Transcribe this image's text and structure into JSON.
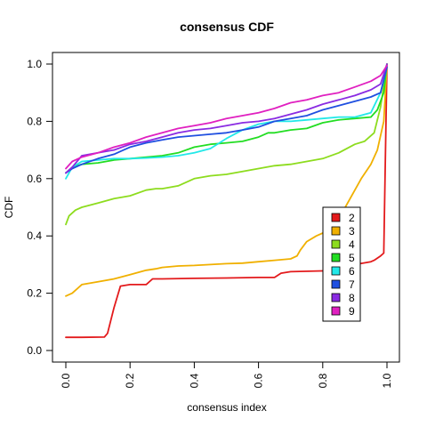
{
  "chart_data": {
    "type": "line",
    "title": "consensus CDF",
    "xlabel": "consensus index",
    "ylabel": "CDF",
    "xlim": [
      0,
      1
    ],
    "ylim": [
      0,
      1
    ],
    "xticks": [
      "0.0",
      "0.2",
      "0.4",
      "0.6",
      "0.8",
      "1.0"
    ],
    "yticks": [
      "0.0",
      "0.2",
      "0.4",
      "0.6",
      "0.8",
      "1.0"
    ],
    "grid": false,
    "legend_position": "right",
    "series": [
      {
        "name": "2",
        "color": "#e31a1c",
        "x": [
          0.0,
          0.05,
          0.12,
          0.13,
          0.15,
          0.17,
          0.2,
          0.25,
          0.27,
          0.3,
          0.4,
          0.5,
          0.6,
          0.65,
          0.67,
          0.7,
          0.8,
          0.85,
          0.9,
          0.95,
          0.96,
          0.98,
          0.99,
          1.0
        ],
        "y": [
          0.046,
          0.046,
          0.047,
          0.06,
          0.15,
          0.225,
          0.23,
          0.23,
          0.25,
          0.25,
          0.252,
          0.253,
          0.255,
          0.255,
          0.27,
          0.275,
          0.278,
          0.28,
          0.3,
          0.31,
          0.315,
          0.33,
          0.34,
          1.0
        ]
      },
      {
        "name": "3",
        "color": "#f0b000",
        "x": [
          0.0,
          0.02,
          0.05,
          0.1,
          0.15,
          0.2,
          0.25,
          0.28,
          0.3,
          0.35,
          0.4,
          0.5,
          0.55,
          0.6,
          0.65,
          0.7,
          0.72,
          0.73,
          0.75,
          0.78,
          0.8,
          0.83,
          0.85,
          0.87,
          0.9,
          0.92,
          0.95,
          0.97,
          0.99,
          1.0
        ],
        "y": [
          0.19,
          0.2,
          0.23,
          0.24,
          0.25,
          0.265,
          0.28,
          0.285,
          0.29,
          0.295,
          0.297,
          0.303,
          0.305,
          0.31,
          0.315,
          0.32,
          0.33,
          0.35,
          0.38,
          0.4,
          0.41,
          0.42,
          0.45,
          0.5,
          0.56,
          0.6,
          0.65,
          0.7,
          0.8,
          1.0
        ]
      },
      {
        "name": "4",
        "color": "#8ddc1e",
        "x": [
          0.0,
          0.01,
          0.03,
          0.05,
          0.1,
          0.15,
          0.2,
          0.25,
          0.28,
          0.3,
          0.35,
          0.4,
          0.45,
          0.5,
          0.55,
          0.6,
          0.65,
          0.7,
          0.75,
          0.8,
          0.85,
          0.9,
          0.93,
          0.96,
          0.98,
          1.0
        ],
        "y": [
          0.44,
          0.47,
          0.49,
          0.5,
          0.515,
          0.53,
          0.54,
          0.56,
          0.565,
          0.565,
          0.575,
          0.6,
          0.61,
          0.615,
          0.625,
          0.635,
          0.645,
          0.65,
          0.66,
          0.67,
          0.69,
          0.72,
          0.73,
          0.76,
          0.85,
          1.0
        ]
      },
      {
        "name": "5",
        "color": "#22dd22",
        "x": [
          0.0,
          0.02,
          0.05,
          0.1,
          0.15,
          0.2,
          0.25,
          0.3,
          0.35,
          0.4,
          0.45,
          0.5,
          0.55,
          0.6,
          0.63,
          0.65,
          0.7,
          0.75,
          0.8,
          0.85,
          0.9,
          0.95,
          0.97,
          0.99,
          1.0
        ],
        "y": [
          0.62,
          0.64,
          0.65,
          0.655,
          0.665,
          0.67,
          0.675,
          0.68,
          0.69,
          0.71,
          0.72,
          0.725,
          0.73,
          0.745,
          0.76,
          0.76,
          0.77,
          0.775,
          0.795,
          0.805,
          0.81,
          0.815,
          0.84,
          0.9,
          1.0
        ]
      },
      {
        "name": "6",
        "color": "#22e8e8",
        "x": [
          0.0,
          0.02,
          0.05,
          0.1,
          0.15,
          0.2,
          0.25,
          0.3,
          0.35,
          0.4,
          0.45,
          0.5,
          0.55,
          0.6,
          0.65,
          0.7,
          0.75,
          0.8,
          0.85,
          0.9,
          0.95,
          0.98,
          1.0
        ],
        "y": [
          0.6,
          0.64,
          0.66,
          0.665,
          0.67,
          0.67,
          0.672,
          0.675,
          0.68,
          0.69,
          0.705,
          0.74,
          0.77,
          0.79,
          0.8,
          0.8,
          0.805,
          0.81,
          0.815,
          0.815,
          0.83,
          0.9,
          0.99
        ]
      },
      {
        "name": "7",
        "color": "#1f4fe0",
        "x": [
          0.0,
          0.02,
          0.05,
          0.1,
          0.15,
          0.18,
          0.2,
          0.25,
          0.3,
          0.35,
          0.4,
          0.45,
          0.5,
          0.55,
          0.6,
          0.65,
          0.7,
          0.75,
          0.8,
          0.85,
          0.9,
          0.95,
          0.98,
          1.0
        ],
        "y": [
          0.62,
          0.635,
          0.65,
          0.67,
          0.685,
          0.7,
          0.71,
          0.725,
          0.735,
          0.745,
          0.75,
          0.755,
          0.76,
          0.77,
          0.78,
          0.8,
          0.81,
          0.82,
          0.84,
          0.855,
          0.87,
          0.885,
          0.9,
          0.99
        ]
      },
      {
        "name": "8",
        "color": "#8a2be2",
        "x": [
          0.0,
          0.02,
          0.05,
          0.1,
          0.15,
          0.2,
          0.25,
          0.3,
          0.35,
          0.4,
          0.45,
          0.5,
          0.55,
          0.6,
          0.65,
          0.7,
          0.75,
          0.8,
          0.85,
          0.9,
          0.95,
          0.98,
          1.0
        ],
        "y": [
          0.62,
          0.64,
          0.68,
          0.69,
          0.7,
          0.72,
          0.73,
          0.745,
          0.76,
          0.77,
          0.775,
          0.785,
          0.795,
          0.8,
          0.81,
          0.825,
          0.84,
          0.86,
          0.875,
          0.89,
          0.91,
          0.93,
          1.0
        ]
      },
      {
        "name": "9",
        "color": "#e020c0",
        "x": [
          0.0,
          0.02,
          0.05,
          0.1,
          0.15,
          0.2,
          0.25,
          0.3,
          0.35,
          0.4,
          0.45,
          0.5,
          0.55,
          0.6,
          0.65,
          0.7,
          0.75,
          0.8,
          0.85,
          0.9,
          0.95,
          0.98,
          1.0
        ],
        "y": [
          0.635,
          0.66,
          0.675,
          0.69,
          0.71,
          0.725,
          0.745,
          0.76,
          0.775,
          0.785,
          0.795,
          0.81,
          0.82,
          0.83,
          0.845,
          0.865,
          0.875,
          0.89,
          0.9,
          0.92,
          0.94,
          0.96,
          0.995
        ]
      }
    ]
  }
}
